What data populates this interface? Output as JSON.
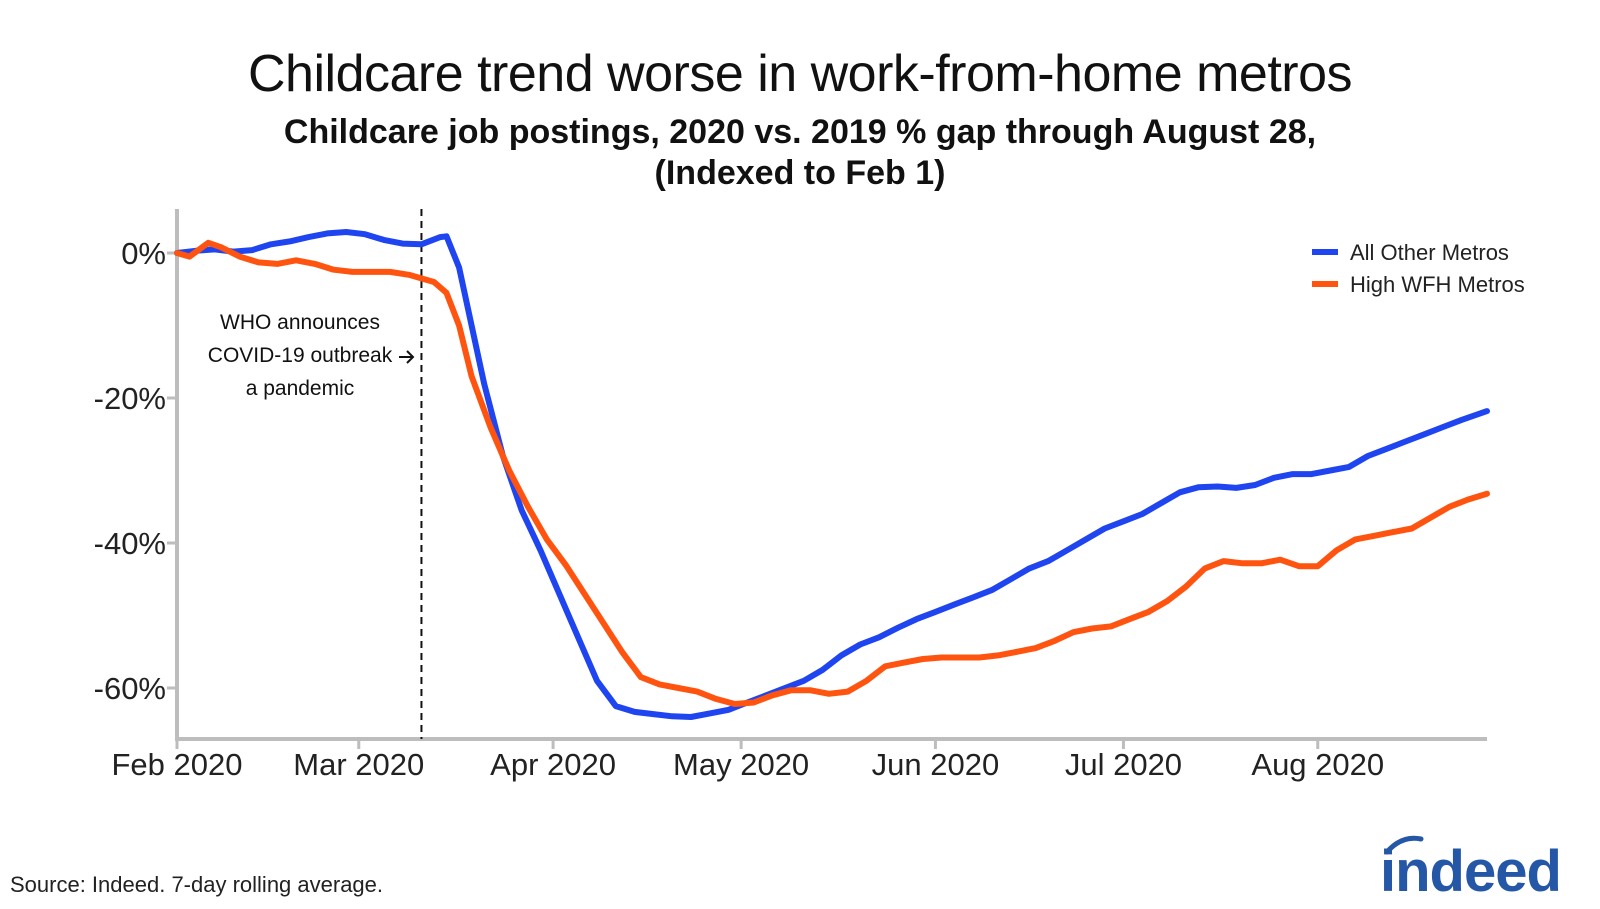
{
  "title": "Childcare trend worse in work-from-home metros",
  "subtitle_line1": "Childcare job postings, 2020 vs. 2019 % gap through August 28,",
  "subtitle_line2": "(Indexed to Feb 1)",
  "source": "Source: Indeed. 7-day rolling average.",
  "logo_text": "indeed",
  "colors": {
    "all_other": "#1f45f0",
    "high_wfh": "#ff5410",
    "axis": "#bdbdbd"
  },
  "chart_data": {
    "type": "line",
    "title": "Childcare trend worse in work-from-home metros",
    "subtitle": "Childcare job postings, 2020 vs. 2019 % gap through August 28, (Indexed to Feb 1)",
    "xlabel": "",
    "ylabel": "",
    "x_ticks": [
      "Feb 2020",
      "Mar 2020",
      "Apr 2020",
      "May 2020",
      "Jun 2020",
      "Jul 2020",
      "Aug 2020"
    ],
    "x_tick_dates": [
      "2020-02-01",
      "2020-03-01",
      "2020-04-01",
      "2020-05-01",
      "2020-06-01",
      "2020-07-01",
      "2020-08-01"
    ],
    "y_ticks": [
      "0%",
      "-20%",
      "-40%",
      "-60%"
    ],
    "y_tick_values": [
      0,
      -20,
      -40,
      -60
    ],
    "ylim": [
      -67.5,
      6
    ],
    "xlim": [
      "2020-02-01",
      "2020-08-28"
    ],
    "legend_position": "top-right",
    "annotation": {
      "lines": [
        "WHO announces",
        "COVID-19 outbreak",
        "a pandemic"
      ],
      "date": "2020-03-11"
    },
    "series": [
      {
        "name": "All Other Metros",
        "x": [
          "2020-02-01",
          "2020-02-04",
          "2020-02-07",
          "2020-02-10",
          "2020-02-13",
          "2020-02-16",
          "2020-02-19",
          "2020-02-22",
          "2020-02-25",
          "2020-02-28",
          "2020-03-02",
          "2020-03-05",
          "2020-03-08",
          "2020-03-11",
          "2020-03-14",
          "2020-03-15",
          "2020-03-17",
          "2020-03-19",
          "2020-03-21",
          "2020-03-24",
          "2020-03-27",
          "2020-03-30",
          "2020-04-02",
          "2020-04-05",
          "2020-04-08",
          "2020-04-11",
          "2020-04-14",
          "2020-04-17",
          "2020-04-20",
          "2020-04-23",
          "2020-04-26",
          "2020-04-29",
          "2020-05-02",
          "2020-05-05",
          "2020-05-08",
          "2020-05-11",
          "2020-05-14",
          "2020-05-17",
          "2020-05-20",
          "2020-05-23",
          "2020-05-26",
          "2020-05-29",
          "2020-06-01",
          "2020-06-04",
          "2020-06-07",
          "2020-06-10",
          "2020-06-13",
          "2020-06-16",
          "2020-06-19",
          "2020-06-22",
          "2020-06-25",
          "2020-06-28",
          "2020-07-01",
          "2020-07-04",
          "2020-07-07",
          "2020-07-10",
          "2020-07-13",
          "2020-07-16",
          "2020-07-19",
          "2020-07-22",
          "2020-07-25",
          "2020-07-28",
          "2020-07-31",
          "2020-08-03",
          "2020-08-06",
          "2020-08-09",
          "2020-08-12",
          "2020-08-15",
          "2020-08-18",
          "2020-08-21",
          "2020-08-24",
          "2020-08-28"
        ],
        "values": [
          0,
          0.3,
          0.5,
          0.2,
          0.4,
          1.2,
          1.6,
          2.2,
          2.7,
          2.9,
          2.6,
          1.8,
          1.3,
          1.2,
          2.2,
          2.3,
          -2,
          -10,
          -18,
          -28,
          -35.5,
          -41,
          -47,
          -53,
          -59,
          -62.5,
          -63.3,
          -63.6,
          -63.9,
          -64,
          -63.5,
          -63,
          -62,
          -61,
          -60,
          -59,
          -57.5,
          -55.5,
          -54,
          -53,
          -51.7,
          -50.5,
          -49.5,
          -48.5,
          -47.5,
          -46.5,
          -45,
          -43.5,
          -42.5,
          -41,
          -39.5,
          -38,
          -37,
          -36,
          -34.5,
          -33,
          -32.3,
          -32.2,
          -32.4,
          -32,
          -31,
          -30.5,
          -30.5,
          -30,
          -29.5,
          -28,
          -27,
          -26,
          -25,
          -24,
          -23,
          -21.8
        ]
      },
      {
        "name": "High WFH Metros",
        "x": [
          "2020-02-01",
          "2020-02-03",
          "2020-02-06",
          "2020-02-08",
          "2020-02-11",
          "2020-02-14",
          "2020-02-17",
          "2020-02-20",
          "2020-02-23",
          "2020-02-26",
          "2020-02-29",
          "2020-03-03",
          "2020-03-06",
          "2020-03-09",
          "2020-03-11",
          "2020-03-13",
          "2020-03-15",
          "2020-03-17",
          "2020-03-19",
          "2020-03-22",
          "2020-03-25",
          "2020-03-28",
          "2020-03-31",
          "2020-04-03",
          "2020-04-06",
          "2020-04-09",
          "2020-04-12",
          "2020-04-15",
          "2020-04-18",
          "2020-04-21",
          "2020-04-24",
          "2020-04-27",
          "2020-04-30",
          "2020-05-03",
          "2020-05-06",
          "2020-05-09",
          "2020-05-12",
          "2020-05-15",
          "2020-05-18",
          "2020-05-21",
          "2020-05-24",
          "2020-05-27",
          "2020-05-30",
          "2020-06-02",
          "2020-06-05",
          "2020-06-08",
          "2020-06-11",
          "2020-06-14",
          "2020-06-17",
          "2020-06-20",
          "2020-06-23",
          "2020-06-26",
          "2020-06-29",
          "2020-07-02",
          "2020-07-05",
          "2020-07-08",
          "2020-07-11",
          "2020-07-14",
          "2020-07-17",
          "2020-07-20",
          "2020-07-23",
          "2020-07-26",
          "2020-07-29",
          "2020-08-01",
          "2020-08-04",
          "2020-08-07",
          "2020-08-10",
          "2020-08-13",
          "2020-08-16",
          "2020-08-19",
          "2020-08-22",
          "2020-08-25",
          "2020-08-28"
        ],
        "values": [
          0,
          -0.5,
          1.4,
          0.8,
          -0.5,
          -1.3,
          -1.5,
          -1.0,
          -1.5,
          -2.3,
          -2.6,
          -2.6,
          -2.6,
          -3.0,
          -3.5,
          -4.0,
          -5.5,
          -10,
          -17,
          -24,
          -30,
          -35,
          -39.5,
          -43,
          -47,
          -51,
          -55,
          -58.5,
          -59.5,
          -60,
          -60.5,
          -61.5,
          -62.2,
          -62,
          -61,
          -60.3,
          -60.3,
          -60.8,
          -60.5,
          -59,
          -57,
          -56.5,
          -56,
          -55.8,
          -55.8,
          -55.8,
          -55.5,
          -55,
          -54.5,
          -53.5,
          -52.3,
          -51.8,
          -51.5,
          -50.5,
          -49.5,
          -48,
          -46,
          -43.5,
          -42.5,
          -42.8,
          -42.8,
          -42.3,
          -43.2,
          -43.2,
          -41,
          -39.5,
          -39,
          -38.5,
          -38,
          -36.5,
          -35,
          -34,
          -33.2
        ]
      }
    ]
  }
}
